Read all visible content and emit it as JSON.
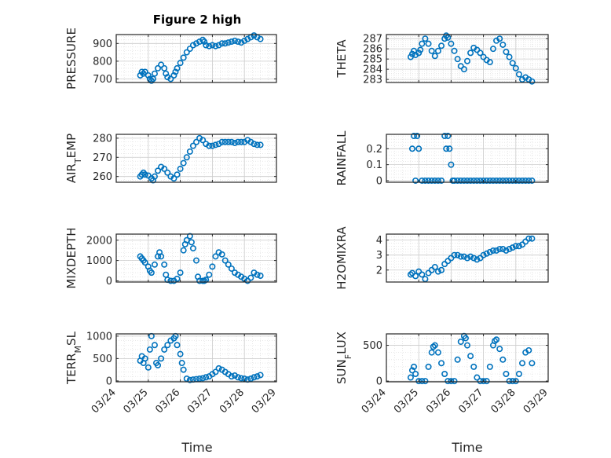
{
  "figure": {
    "title": "Figure 2 high",
    "xlabel_left": "Time",
    "xlabel_right": "Time",
    "xticklabels": [
      "03/24",
      "03/25",
      "03/26",
      "03/27",
      "03/28",
      "03/29"
    ],
    "marker_color": "#0072BD",
    "grid": "on (major + minor dotted)"
  },
  "chart_data": [
    {
      "type": "scatter",
      "name": "PRESSURE",
      "ylabel": "PRESSURE",
      "title": "Figure 2 high",
      "xlim": [
        0,
        5
      ],
      "ylim": [
        680,
        950
      ],
      "yticks": [
        700,
        800,
        900
      ],
      "x": [
        0.75,
        0.8,
        0.85,
        0.9,
        1.0,
        1.05,
        1.1,
        1.15,
        1.2,
        1.3,
        1.4,
        1.5,
        1.55,
        1.6,
        1.7,
        1.8,
        1.85,
        1.9,
        2.0,
        2.1,
        2.2,
        2.3,
        2.4,
        2.5,
        2.6,
        2.7,
        2.75,
        2.8,
        2.9,
        3.0,
        3.1,
        3.2,
        3.3,
        3.4,
        3.5,
        3.6,
        3.7,
        3.8,
        3.9,
        4.0,
        4.1,
        4.2,
        4.3,
        4.4,
        4.5
      ],
      "y": [
        720,
        740,
        730,
        740,
        720,
        700,
        690,
        700,
        730,
        760,
        780,
        760,
        730,
        710,
        700,
        720,
        740,
        760,
        790,
        820,
        850,
        870,
        890,
        900,
        910,
        920,
        910,
        890,
        885,
        890,
        885,
        890,
        900,
        900,
        905,
        910,
        915,
        910,
        905,
        915,
        925,
        935,
        945,
        935,
        925
      ]
    },
    {
      "type": "scatter",
      "name": "THETA",
      "ylabel": "THETA",
      "xlim": [
        0,
        5
      ],
      "ylim": [
        282.7,
        287.4
      ],
      "yticks": [
        283,
        284,
        285,
        286,
        287
      ],
      "x": [
        0.75,
        0.8,
        0.85,
        0.9,
        1.0,
        1.05,
        1.1,
        1.2,
        1.3,
        1.4,
        1.5,
        1.6,
        1.7,
        1.8,
        1.85,
        1.9,
        2.0,
        2.1,
        2.2,
        2.3,
        2.4,
        2.5,
        2.6,
        2.7,
        2.8,
        2.9,
        3.0,
        3.1,
        3.2,
        3.3,
        3.4,
        3.5,
        3.6,
        3.7,
        3.8,
        3.9,
        4.0,
        4.1,
        4.2,
        4.3,
        4.4,
        4.5
      ],
      "y": [
        285.2,
        285.5,
        285.8,
        285.4,
        285.6,
        285.9,
        286.5,
        287.0,
        286.5,
        285.8,
        285.3,
        285.8,
        286.3,
        287.0,
        287.3,
        287.1,
        286.5,
        285.8,
        285.0,
        284.3,
        284.0,
        284.8,
        285.6,
        286.1,
        285.9,
        285.6,
        285.2,
        284.9,
        284.7,
        286.0,
        286.8,
        287.0,
        286.4,
        285.7,
        285.2,
        284.6,
        284.1,
        283.5,
        283.0,
        283.2,
        283.0,
        282.8
      ]
    },
    {
      "type": "scatter",
      "name": "AIR_TEMP",
      "ylabel": "AIR_TEMP",
      "xlim": [
        0,
        5
      ],
      "ylim": [
        257,
        282
      ],
      "yticks": [
        260,
        270,
        280
      ],
      "x": [
        0.75,
        0.8,
        0.85,
        0.9,
        1.0,
        1.1,
        1.15,
        1.2,
        1.3,
        1.4,
        1.5,
        1.6,
        1.7,
        1.8,
        1.9,
        2.0,
        2.1,
        2.2,
        2.3,
        2.4,
        2.5,
        2.6,
        2.7,
        2.8,
        2.9,
        3.0,
        3.1,
        3.2,
        3.3,
        3.4,
        3.5,
        3.6,
        3.7,
        3.8,
        3.9,
        4.0,
        4.1,
        4.2,
        4.3,
        4.4,
        4.5
      ],
      "y": [
        260,
        261,
        262,
        261,
        260.5,
        259,
        258,
        260,
        263,
        265,
        264,
        262,
        260,
        259,
        261,
        264,
        267,
        270,
        273,
        276,
        278,
        280,
        279,
        277,
        276,
        276,
        276.5,
        277,
        278,
        278,
        278,
        278,
        277.5,
        278,
        278,
        278,
        279,
        278,
        277,
        276.5,
        276.5
      ]
    },
    {
      "type": "scatter",
      "name": "RAINFALL",
      "ylabel": "RAINFALL",
      "xlim": [
        0,
        5
      ],
      "ylim": [
        -0.01,
        0.29
      ],
      "yticks": [
        0,
        0.1,
        0.2
      ],
      "x": [
        0.8,
        0.85,
        0.9,
        0.95,
        1.0,
        1.1,
        1.2,
        1.3,
        1.4,
        1.5,
        1.6,
        1.7,
        1.8,
        1.85,
        1.9,
        1.95,
        2.0,
        2.05,
        2.1,
        2.2,
        2.3,
        2.4,
        2.5,
        2.6,
        2.7,
        2.8,
        2.9,
        3.0,
        3.1,
        3.2,
        3.3,
        3.4,
        3.5,
        3.6,
        3.7,
        3.8,
        3.9,
        4.0,
        4.1,
        4.2,
        4.3,
        4.4,
        4.5
      ],
      "y": [
        0.2,
        0.28,
        0,
        0.28,
        0.2,
        0,
        0,
        0,
        0,
        0,
        0,
        0,
        0.28,
        0.2,
        0.28,
        0.2,
        0.1,
        0,
        0,
        0,
        0,
        0,
        0,
        0,
        0,
        0,
        0,
        0,
        0,
        0,
        0,
        0,
        0,
        0,
        0,
        0,
        0,
        0,
        0,
        0,
        0,
        0,
        0
      ]
    },
    {
      "type": "scatter",
      "name": "MIXDEPTH",
      "ylabel": "MIXDEPTH",
      "xlim": [
        0,
        5
      ],
      "ylim": [
        -60,
        2300
      ],
      "yticks": [
        0,
        1000,
        2000
      ],
      "x": [
        0.75,
        0.8,
        0.85,
        0.9,
        1.0,
        1.05,
        1.1,
        1.2,
        1.3,
        1.35,
        1.4,
        1.5,
        1.55,
        1.6,
        1.7,
        1.8,
        1.9,
        2.0,
        2.1,
        2.15,
        2.2,
        2.3,
        2.35,
        2.4,
        2.5,
        2.55,
        2.6,
        2.7,
        2.75,
        2.8,
        2.9,
        3.0,
        3.1,
        3.2,
        3.3,
        3.4,
        3.5,
        3.6,
        3.7,
        3.8,
        3.9,
        4.0,
        4.1,
        4.2,
        4.3,
        4.4,
        4.5
      ],
      "y": [
        1200,
        1100,
        1000,
        900,
        700,
        500,
        400,
        800,
        1200,
        1400,
        1200,
        800,
        300,
        50,
        0,
        0,
        100,
        400,
        1500,
        1800,
        2000,
        2200,
        1900,
        1600,
        1000,
        200,
        0,
        0,
        0,
        50,
        300,
        700,
        1200,
        1400,
        1300,
        1000,
        800,
        600,
        400,
        300,
        200,
        100,
        0,
        150,
        400,
        300,
        250
      ]
    },
    {
      "type": "scatter",
      "name": "H2OMIXRA",
      "ylabel": "H2OMIXRA",
      "xlim": [
        0,
        5
      ],
      "ylim": [
        1.2,
        4.4
      ],
      "yticks": [
        2,
        3,
        4
      ],
      "x": [
        0.75,
        0.8,
        0.9,
        1.0,
        1.1,
        1.2,
        1.3,
        1.4,
        1.5,
        1.6,
        1.7,
        1.8,
        1.9,
        2.0,
        2.1,
        2.2,
        2.3,
        2.4,
        2.5,
        2.6,
        2.7,
        2.8,
        2.9,
        3.0,
        3.1,
        3.2,
        3.3,
        3.4,
        3.5,
        3.6,
        3.7,
        3.8,
        3.9,
        4.0,
        4.1,
        4.2,
        4.3,
        4.4,
        4.5
      ],
      "y": [
        1.7,
        1.8,
        1.6,
        1.9,
        1.7,
        1.4,
        1.8,
        2.0,
        2.2,
        1.9,
        2.0,
        2.4,
        2.6,
        2.8,
        3.0,
        3.0,
        2.9,
        2.9,
        2.8,
        2.9,
        2.8,
        2.7,
        2.8,
        3.0,
        3.1,
        3.2,
        3.3,
        3.3,
        3.4,
        3.4,
        3.3,
        3.4,
        3.5,
        3.6,
        3.6,
        3.7,
        3.9,
        4.1,
        4.1
      ]
    },
    {
      "type": "scatter",
      "name": "TERR_MSL",
      "ylabel": "TERR_MSL",
      "xlim": [
        0,
        5
      ],
      "ylim": [
        -20,
        1050
      ],
      "yticks": [
        0,
        500,
        1000
      ],
      "x": [
        0.75,
        0.8,
        0.85,
        0.9,
        1.0,
        1.05,
        1.1,
        1.2,
        1.25,
        1.3,
        1.4,
        1.5,
        1.6,
        1.7,
        1.8,
        1.85,
        1.9,
        2.0,
        2.05,
        2.1,
        2.2,
        2.3,
        2.4,
        2.5,
        2.6,
        2.7,
        2.8,
        2.9,
        3.0,
        3.1,
        3.2,
        3.3,
        3.4,
        3.5,
        3.6,
        3.7,
        3.8,
        3.9,
        4.0,
        4.1,
        4.2,
        4.3,
        4.4,
        4.5
      ],
      "y": [
        450,
        550,
        400,
        500,
        300,
        700,
        1000,
        800,
        400,
        350,
        500,
        700,
        800,
        900,
        950,
        1000,
        800,
        600,
        400,
        250,
        50,
        20,
        30,
        40,
        50,
        60,
        80,
        100,
        150,
        200,
        280,
        250,
        200,
        150,
        100,
        120,
        80,
        60,
        50,
        30,
        50,
        80,
        100,
        130
      ]
    },
    {
      "type": "scatter",
      "name": "SUN_FLUX",
      "ylabel": "SUN_FLUX",
      "xlim": [
        0,
        5
      ],
      "ylim": [
        -10,
        660
      ],
      "yticks": [
        0,
        500
      ],
      "x": [
        0.75,
        0.8,
        0.85,
        0.9,
        1.0,
        1.1,
        1.2,
        1.3,
        1.4,
        1.45,
        1.5,
        1.6,
        1.7,
        1.8,
        1.9,
        2.0,
        2.1,
        2.2,
        2.3,
        2.4,
        2.45,
        2.5,
        2.6,
        2.7,
        2.8,
        2.9,
        3.0,
        3.1,
        3.2,
        3.3,
        3.35,
        3.4,
        3.5,
        3.6,
        3.7,
        3.8,
        3.9,
        4.0,
        4.1,
        4.2,
        4.3,
        4.4,
        4.5
      ],
      "y": [
        50,
        150,
        200,
        100,
        0,
        0,
        0,
        200,
        400,
        480,
        500,
        400,
        250,
        100,
        0,
        0,
        0,
        300,
        550,
        630,
        600,
        500,
        350,
        200,
        50,
        0,
        0,
        0,
        200,
        500,
        560,
        580,
        450,
        300,
        100,
        0,
        0,
        0,
        100,
        250,
        400,
        430,
        250
      ]
    }
  ]
}
